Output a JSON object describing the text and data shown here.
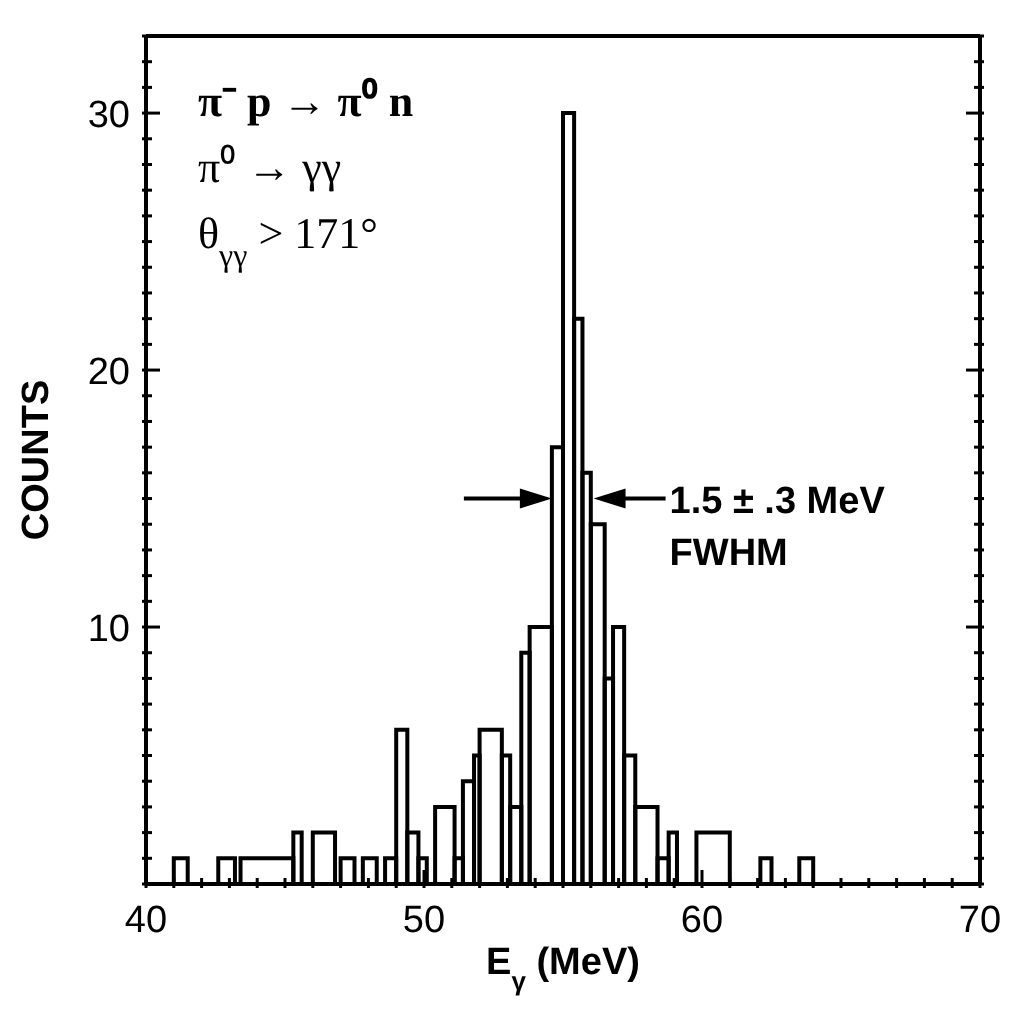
{
  "chart_data": {
    "type": "histogram",
    "xlabel": "E$_{γ}$ (MeV)",
    "ylabel": "COUNTS",
    "bins": [
      41.0,
      41.5,
      42.6,
      43.2,
      43.4,
      45.3,
      45.6,
      46.0,
      46.8,
      47.0,
      47.5,
      47.8,
      48.3,
      48.6,
      49.0,
      49.4,
      49.8,
      50.1,
      50.4,
      51.1,
      51.4,
      51.8,
      52.0,
      52.8,
      53.1,
      53.5,
      53.8,
      54.6,
      55.0,
      55.4,
      55.7,
      56.0,
      56.5,
      56.8,
      57.2,
      57.6,
      58.4,
      58.8,
      59.1,
      59.8,
      61.0,
      62.1,
      62.5,
      63.5,
      64.0
    ],
    "values": [
      1,
      0,
      1,
      0,
      1,
      2,
      0,
      2,
      0,
      1,
      0,
      1,
      0,
      1,
      6,
      2,
      1,
      0,
      3,
      1,
      4,
      5,
      6,
      5,
      3,
      9,
      10,
      17,
      30,
      22,
      16,
      14,
      8,
      10,
      5,
      3,
      1,
      2,
      0,
      2,
      0,
      1,
      0,
      1
    ],
    "color": "#000000",
    "xlim": [
      40,
      70
    ],
    "xticks": [
      40,
      {
        "value": 41,
        "label": null
      },
      {
        "value": 42,
        "label": null
      },
      {
        "value": 43,
        "label": null
      },
      {
        "value": 44,
        "label": null
      },
      {
        "value": 45,
        "label": null
      },
      {
        "value": 46,
        "label": null
      },
      {
        "value": 47,
        "label": null
      },
      {
        "value": 48,
        "label": null
      },
      {
        "value": 49,
        "label": null
      },
      50,
      {
        "value": 51,
        "label": null
      },
      {
        "value": 52,
        "label": null
      },
      {
        "value": 53,
        "label": null
      },
      {
        "value": 54,
        "label": null
      },
      {
        "value": 55,
        "label": null
      },
      {
        "value": 56,
        "label": null
      },
      {
        "value": 57,
        "label": null
      },
      {
        "value": 58,
        "label": null
      },
      {
        "value": 59,
        "label": null
      },
      60,
      {
        "value": 61,
        "label": null
      },
      {
        "value": 62,
        "label": null
      },
      {
        "value": 63,
        "label": null
      },
      {
        "value": 64,
        "label": null
      },
      {
        "value": 65,
        "label": null
      },
      {
        "value": 66,
        "label": null
      },
      {
        "value": 67,
        "label": null
      },
      {
        "value": 68,
        "label": null
      },
      {
        "value": 69,
        "label": null
      },
      70
    ],
    "ylim": [
      0,
      33
    ],
    "yticks": [
      {
        "value": 0,
        "label": null
      },
      {
        "value": 1,
        "label": null
      },
      {
        "value": 2,
        "label": null
      },
      {
        "value": 3,
        "label": null
      },
      {
        "value": 4,
        "label": null
      },
      {
        "value": 5,
        "label": null
      },
      {
        "value": 6,
        "label": null
      },
      {
        "value": 7,
        "label": null
      },
      {
        "value": 8,
        "label": null
      },
      {
        "value": 9,
        "label": null
      },
      10,
      {
        "value": 11,
        "label": null
      },
      {
        "value": 12,
        "label": null
      },
      {
        "value": 13,
        "label": null
      },
      {
        "value": 14,
        "label": null
      },
      {
        "value": 15,
        "label": null
      },
      {
        "value": 16,
        "label": null
      },
      {
        "value": 17,
        "label": null
      },
      {
        "value": 18,
        "label": null
      },
      {
        "value": 19,
        "label": null
      },
      20,
      {
        "value": 21,
        "label": null
      },
      {
        "value": 22,
        "label": null
      },
      {
        "value": 23,
        "label": null
      },
      {
        "value": 24,
        "label": null
      },
      {
        "value": 25,
        "label": null
      },
      {
        "value": 26,
        "label": null
      },
      {
        "value": 27,
        "label": null
      },
      {
        "value": 28,
        "label": null
      },
      {
        "value": 29,
        "label": null
      },
      30,
      {
        "value": 31,
        "label": null
      },
      {
        "value": 32,
        "label": null
      },
      {
        "value": 33,
        "label": null
      }
    ],
    "annotations": [
      "π⁻ p → π⁰ n",
      "π⁰ → γγ",
      "θ$_{γγ}$ > 171°",
      {
        "text": "1.5 ± .3 MeV",
        "x": 56.1,
        "y": 15
      },
      {
        "text": "FWHM",
        "x": 56.1,
        "y": 15
      }
    ]
  }
}
